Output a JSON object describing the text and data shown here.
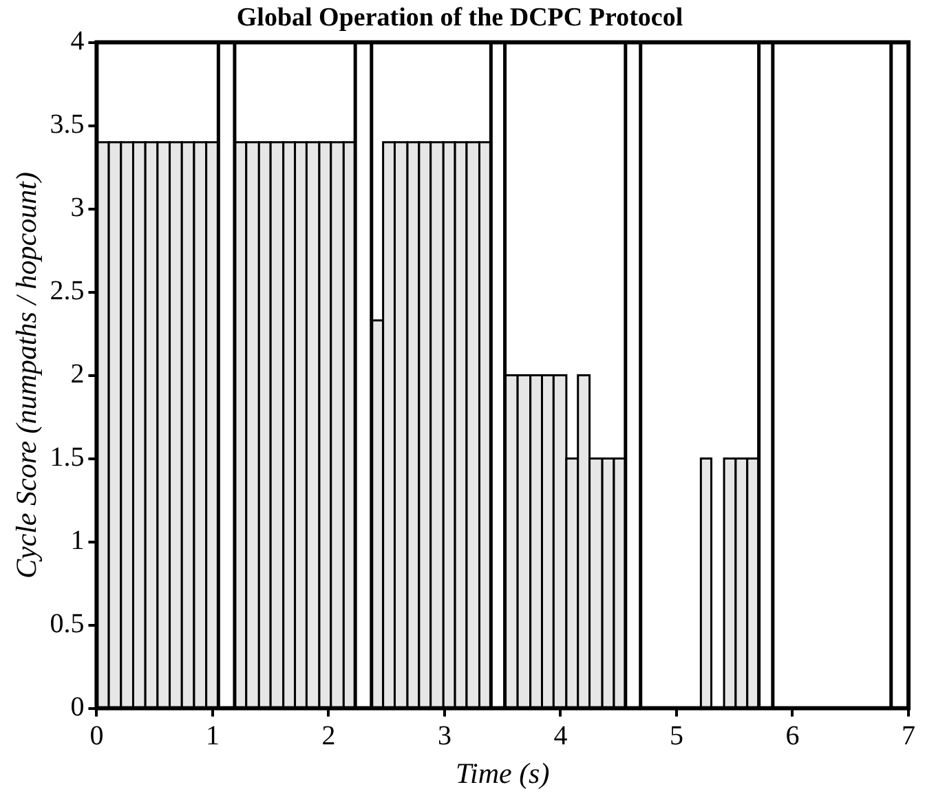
{
  "chart_data": {
    "type": "histogram",
    "title": "Global Operation of the DCPC Protocol",
    "xlabel": "Time (s)",
    "ylabel": "Cycle Score (numpaths / hopcount)",
    "bins": [
      0,
      0.105,
      0.21,
      0.315,
      0.42,
      0.525,
      0.63,
      0.735,
      0.84,
      0.945,
      1.05,
      1.19,
      1.29,
      1.4,
      1.5,
      1.61,
      1.71,
      1.81,
      1.92,
      2.02,
      2.13,
      2.23,
      2.37,
      2.47,
      2.57,
      2.68,
      2.78,
      2.88,
      2.99,
      3.09,
      3.19,
      3.3,
      3.4,
      3.52,
      3.63,
      3.74,
      3.84,
      3.94,
      4.05,
      4.15,
      4.25,
      4.36,
      4.46,
      4.56,
      5.21,
      5.3,
      5.41,
      5.51,
      5.61,
      5.71
    ],
    "values": [
      3.4,
      3.4,
      3.4,
      3.4,
      3.4,
      3.4,
      3.4,
      3.4,
      3.4,
      3.4,
      null,
      3.4,
      3.4,
      3.4,
      3.4,
      3.4,
      3.4,
      3.4,
      3.4,
      3.4,
      3.4,
      null,
      2.33,
      3.4,
      3.4,
      3.4,
      3.4,
      3.4,
      3.4,
      3.4,
      3.4,
      3.4,
      null,
      2,
      2,
      2,
      2,
      2,
      1.5,
      2,
      1.5,
      1.5,
      1.5,
      null,
      1.5,
      null,
      1.5,
      1.5,
      1.5
    ],
    "color": "#e6e6e6",
    "xlim": [
      0,
      7
    ],
    "xticks": [
      0,
      1,
      2,
      3,
      4,
      5,
      6,
      7
    ],
    "ylim": [
      0,
      4
    ],
    "yticks": [
      0,
      0.5,
      1,
      1.5,
      2,
      2.5,
      3,
      3.5,
      4
    ],
    "ref_lines": [
      {
        "axis": "x",
        "value": 1.05
      },
      {
        "axis": "x",
        "value": 1.19
      },
      {
        "axis": "x",
        "value": 2.23
      },
      {
        "axis": "x",
        "value": 2.37
      },
      {
        "axis": "x",
        "value": 3.4
      },
      {
        "axis": "x",
        "value": 3.52
      },
      {
        "axis": "x",
        "value": 4.56
      },
      {
        "axis": "x",
        "value": 4.69
      },
      {
        "axis": "x",
        "value": 5.71
      },
      {
        "axis": "x",
        "value": 5.83
      },
      {
        "axis": "x",
        "value": 6.85
      }
    ],
    "grid": false,
    "legend": false
  }
}
